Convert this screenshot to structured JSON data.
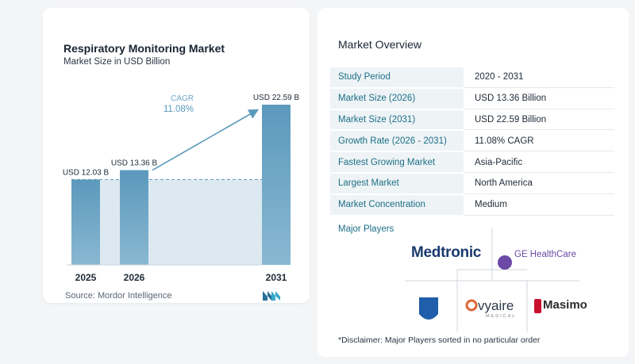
{
  "chart": {
    "title": "Respiratory Monitoring Market",
    "subtitle": "Market Size in USD Billion",
    "source": "Source:  Mordor Intelligence",
    "cagr_label": "CAGR",
    "cagr_value": "11.08%"
  },
  "chart_data": {
    "type": "bar",
    "title": "Respiratory Monitoring Market",
    "subtitle": "Market Size in USD Billion",
    "categories": [
      "2025",
      "2026",
      "2031"
    ],
    "values": [
      12.03,
      13.36,
      22.59
    ],
    "value_labels": [
      "USD 12.03 B",
      "USD 13.36 B",
      "USD 22.59 B"
    ],
    "ylim": [
      0,
      22.59
    ],
    "grid": false,
    "annotation": {
      "label": "CAGR",
      "value": "11.08%"
    },
    "colors": {
      "bar": "#5b99bc",
      "bar_light": "#8ab8d2",
      "area": "#dde9f1",
      "arrow": "#5b99bc"
    }
  },
  "overview": {
    "title": "Market Overview",
    "rows": [
      {
        "label": "Study Period",
        "value": "2020 - 2031"
      },
      {
        "label": "Market Size (2026)",
        "value": "USD 13.36 Billion"
      },
      {
        "label": "Market Size (2031)",
        "value": "USD 22.59 Billion"
      },
      {
        "label": "Growth Rate (2026 - 2031)",
        "value": "11.08% CAGR"
      },
      {
        "label": "Fastest Growing Market",
        "value": "Asia-Pacific"
      },
      {
        "label": "Largest Market",
        "value": "North America"
      },
      {
        "label": "Market Concentration",
        "value": "Medium"
      }
    ],
    "players_title": "Major Players",
    "players": [
      "Medtronic",
      "GE HealthCare",
      "PHILIPS",
      "vyaire",
      "Masimo"
    ],
    "vyaire_sub": "MEDICAL",
    "disclaimer": "*Disclaimer: Major Players sorted in no particular order"
  }
}
